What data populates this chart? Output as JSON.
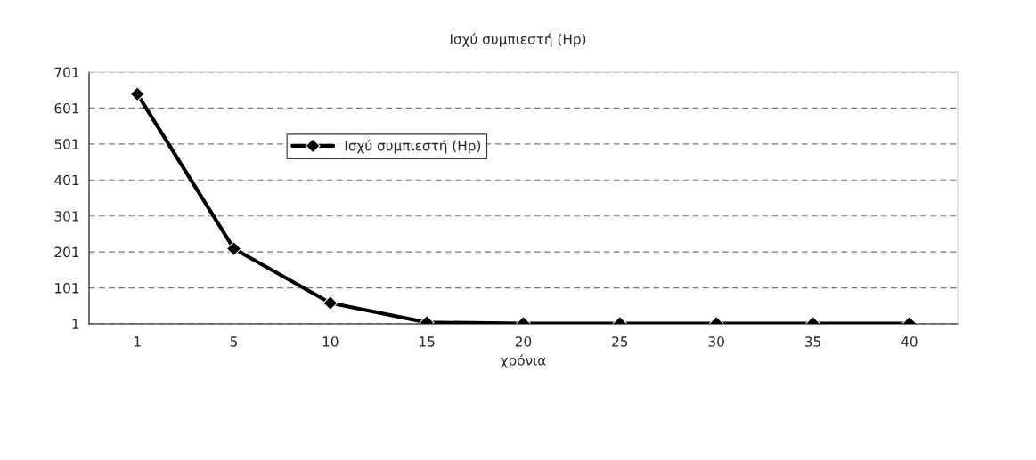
{
  "chart_data": {
    "type": "line",
    "title": "Ισχύ συμπιεστή (Hp)",
    "xlabel": "χρόνια",
    "categories": [
      "1",
      "5",
      "10",
      "15",
      "20",
      "25",
      "30",
      "35",
      "40"
    ],
    "series": [
      {
        "name": "Ισχύ συμπιεστή (Hp)",
        "color": "#000000",
        "values": [
          640,
          210,
          59,
          5,
          2,
          2,
          2,
          2,
          2
        ]
      }
    ],
    "ylim": [
      1,
      701
    ],
    "yticks": [
      1,
      101,
      201,
      301,
      401,
      501,
      601,
      701
    ],
    "grid": "y",
    "legend": "top left",
    "marker": "diamond",
    "line_style": "solid"
  }
}
